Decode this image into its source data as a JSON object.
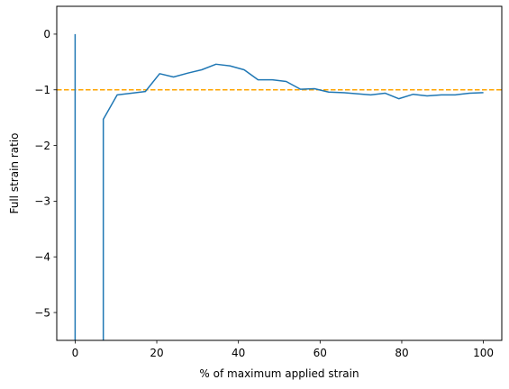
{
  "chart_data": {
    "type": "line",
    "title": "",
    "xlabel": "% of maximum applied strain",
    "ylabel": "Full strain ratio",
    "xlim": [
      -4.5,
      104.5
    ],
    "ylim": [
      -5.5,
      0.5
    ],
    "xticks": [
      0,
      20,
      40,
      60,
      80,
      100
    ],
    "yticks": [
      0,
      -1,
      -2,
      -3,
      -4,
      -5
    ],
    "xtick_labels": [
      "0",
      "20",
      "40",
      "60",
      "80",
      "100"
    ],
    "ytick_labels": [
      "0",
      "−1",
      "−2",
      "−3",
      "−4",
      "−5"
    ],
    "grid": false,
    "legend": "none",
    "series": [
      {
        "color": "#1f77b4",
        "segments": [
          [
            [
              0.0,
              0.0
            ],
            [
              0.0,
              -5.5
            ]
          ],
          [
            [
              6.9,
              -5.5
            ],
            [
              6.9,
              -1.53
            ],
            [
              10.3,
              -1.09
            ],
            [
              13.8,
              -1.06
            ],
            [
              17.2,
              -1.03
            ],
            [
              20.7,
              -0.71
            ],
            [
              24.1,
              -0.77
            ],
            [
              27.6,
              -0.7
            ],
            [
              31.0,
              -0.64
            ],
            [
              34.5,
              -0.54
            ],
            [
              37.9,
              -0.57
            ],
            [
              41.4,
              -0.64
            ],
            [
              44.8,
              -0.82
            ],
            [
              48.3,
              -0.82
            ],
            [
              51.7,
              -0.85
            ],
            [
              55.2,
              -0.99
            ],
            [
              58.6,
              -0.98
            ],
            [
              62.1,
              -1.04
            ],
            [
              65.5,
              -1.05
            ],
            [
              69.0,
              -1.07
            ],
            [
              72.4,
              -1.09
            ],
            [
              75.9,
              -1.06
            ],
            [
              79.3,
              -1.16
            ],
            [
              82.8,
              -1.08
            ],
            [
              86.2,
              -1.11
            ],
            [
              89.7,
              -1.09
            ],
            [
              93.1,
              -1.09
            ],
            [
              96.6,
              -1.06
            ],
            [
              100.0,
              -1.05
            ]
          ]
        ]
      }
    ],
    "reference_lines": [
      {
        "orientation": "horizontal",
        "y": -1.0,
        "style": "dashed",
        "color": "#ffa500"
      }
    ]
  }
}
